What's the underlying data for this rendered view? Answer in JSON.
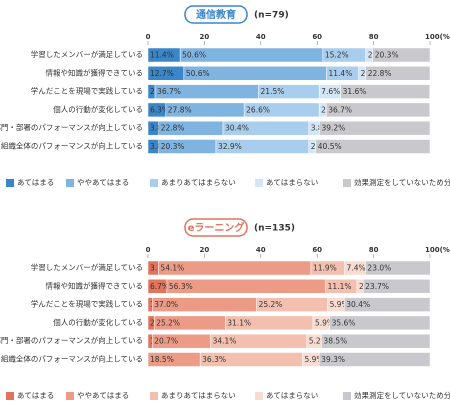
{
  "chart_data": [
    {
      "type": "bar",
      "orientation": "horizontal",
      "stacked": true,
      "title": "通信教育",
      "subtitle": "(n=79)",
      "title_color": "#3a86c8",
      "categories": [
        "学習したメンバーが満足している",
        "情報や知識が獲得できている",
        "学んだことを現場で実践している",
        "個人の行動が変化している",
        "部門・部署のパフォーマンスが向上している",
        "組織全体のパフォーマンスが向上している"
      ],
      "series": [
        {
          "name": "あてはまる",
          "color": "#3a86c8",
          "values": [
            11.4,
            12.7,
            2.5,
            6.3,
            3.8,
            3.8
          ],
          "value_labels": [
            "11.4%",
            "12.7%",
            "2.5%",
            "6.3%",
            "3.8%",
            "3.8%"
          ]
        },
        {
          "name": "ややあてはまる",
          "color": "#7fb3e0",
          "values": [
            50.6,
            50.6,
            36.7,
            27.8,
            22.8,
            20.3
          ],
          "value_labels": [
            "50.6%",
            "50.6%",
            "36.7%",
            "27.8%",
            "22.8%",
            "20.3%"
          ]
        },
        {
          "name": "あまりあてはまらない",
          "color": "#a9cdec",
          "values": [
            15.2,
            11.4,
            21.5,
            26.6,
            30.4,
            32.9
          ],
          "value_labels": [
            "15.2%",
            "11.4%",
            "21.5%",
            "26.6%",
            "30.4%",
            "32.9%"
          ]
        },
        {
          "name": "あてはまらない",
          "color": "#d3e6f5",
          "values": [
            2.5,
            2.5,
            7.6,
            2.5,
            3.8,
            2.5
          ],
          "value_labels": [
            "2.5%",
            "2.5%",
            "7.6%",
            "2.5%",
            "3.8%",
            "2.5%"
          ]
        },
        {
          "name": "効果測定をしていないため分からない",
          "color": "#c9c9cd",
          "values": [
            20.3,
            22.8,
            31.6,
            36.7,
            39.2,
            40.5
          ],
          "value_labels": [
            "20.3%",
            "22.8%",
            "31.6%",
            "36.7%",
            "39.2%",
            "40.5%"
          ]
        }
      ],
      "xlim": [
        0,
        100
      ],
      "xticks": [
        0,
        20,
        40,
        60,
        80,
        {
          "value": 100,
          "label": "100(%)"
        }
      ]
    },
    {
      "type": "bar",
      "orientation": "horizontal",
      "stacked": true,
      "title": "eラーニング",
      "subtitle": "(n=135)",
      "title_color": "#e2735c",
      "categories": [
        "学習したメンバーが満足している",
        "情報や知識が獲得できている",
        "学んだことを現場で実践している",
        "個人の行動が変化している",
        "部門・部署のパフォーマンスが向上している",
        "組織全体のパフォーマンスが向上している"
      ],
      "series": [
        {
          "name": "あてはまる",
          "color": "#e2735c",
          "values": [
            3.7,
            6.7,
            1.5,
            2.2,
            1.5,
            0
          ],
          "value_labels": [
            "3.7%",
            "6.7%",
            "1.5%",
            "2.2%",
            "1.5%",
            null
          ]
        },
        {
          "name": "ややあてはまる",
          "color": "#ec9c86",
          "values": [
            54.1,
            56.3,
            37.0,
            25.2,
            20.7,
            18.5
          ],
          "value_labels": [
            "54.1%",
            "56.3%",
            "37.0%",
            "25.2%",
            "20.7%",
            "18.5%"
          ]
        },
        {
          "name": "あまりあてはまらない",
          "color": "#f3bfae",
          "values": [
            11.9,
            11.1,
            25.2,
            31.1,
            34.1,
            36.3
          ],
          "value_labels": [
            "11.9%",
            "11.1%",
            "25.2%",
            "31.1%",
            "34.1%",
            "36.3%"
          ]
        },
        {
          "name": "あてはまらない",
          "color": "#f8dbd1",
          "values": [
            7.4,
            2.2,
            5.9,
            5.9,
            5.2,
            5.9
          ],
          "value_labels": [
            "7.4%",
            "2.2%",
            "5.9%",
            "5.9%",
            "5.2%",
            "5.9%"
          ]
        },
        {
          "name": "効果測定をしていないため分からない",
          "color": "#c9c9cd",
          "values": [
            23.0,
            23.7,
            30.4,
            35.6,
            38.5,
            39.3
          ],
          "value_labels": [
            "23.0%",
            "23.7%",
            "30.4%",
            "35.6%",
            "38.5%",
            "39.3%"
          ]
        }
      ],
      "xlim": [
        0,
        100
      ],
      "xticks": [
        0,
        20,
        40,
        60,
        80,
        {
          "value": 100,
          "label": "100(%)"
        }
      ]
    }
  ]
}
